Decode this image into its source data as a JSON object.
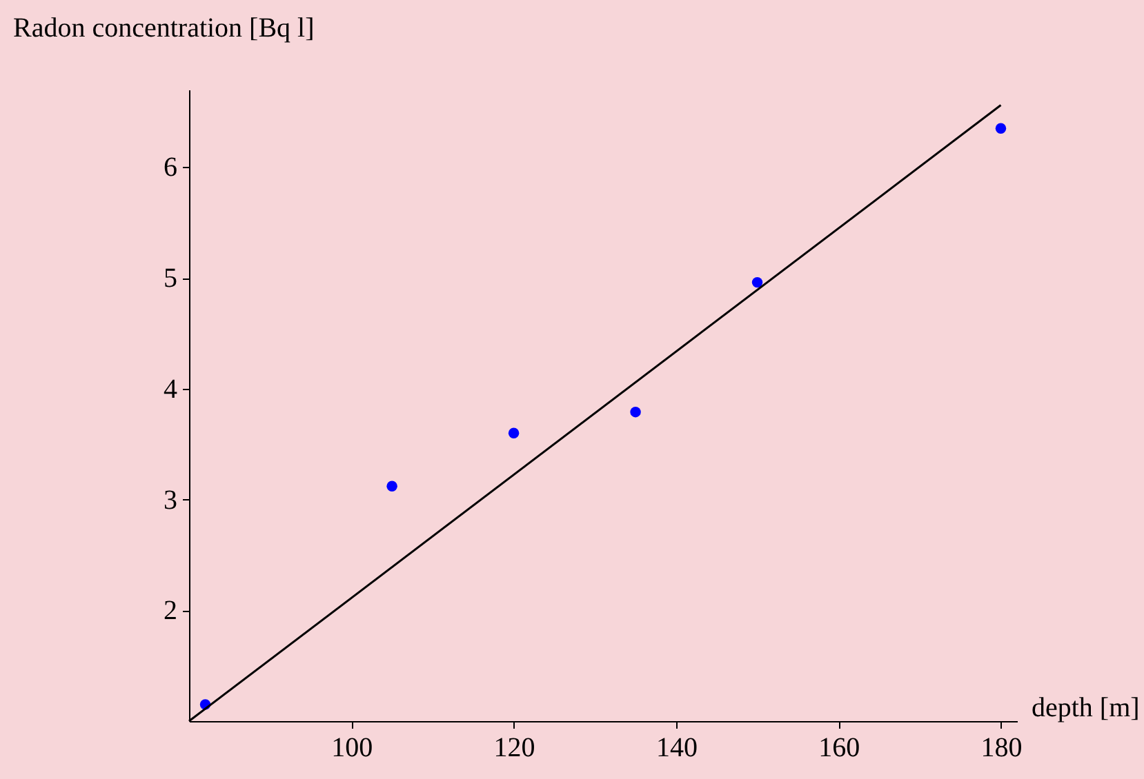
{
  "chart_data": {
    "type": "scatter",
    "xlabel": "depth [m]",
    "ylabel": "Radon concentration [Bq l]",
    "x": [
      82,
      105,
      120,
      135,
      150,
      180
    ],
    "series": [
      {
        "color": "#0000ff",
        "values": [
          1.15,
          3.12,
          3.6,
          3.79,
          4.96,
          6.35
        ]
      },
      {
        "type": "line",
        "marker": "none",
        "color": "#000000",
        "x": [
          80,
          180
        ],
        "values": [
          1.0,
          6.56
        ]
      }
    ],
    "xlim": [
      80,
      182
    ],
    "xticks": [
      100,
      120,
      140,
      160,
      180
    ],
    "ylim": [
      1,
      6.7
    ],
    "yticks": [
      2,
      3,
      4,
      5,
      6
    ],
    "grid": false,
    "marker": "circle"
  }
}
